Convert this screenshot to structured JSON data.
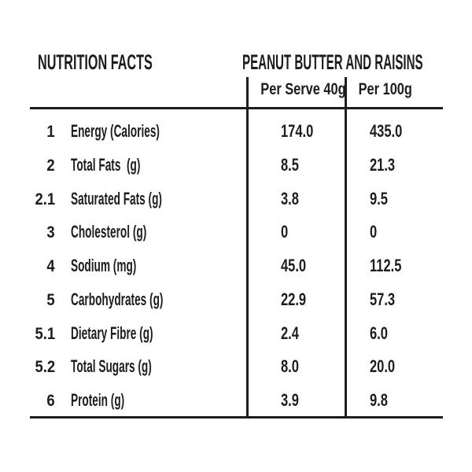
{
  "header": {
    "left_title": "NUTRITION FACTS",
    "right_title": "PEANUT BUTTER AND RAISINS"
  },
  "columns": {
    "per_serve": "Per Serve 40g",
    "per_100g": "Per 100g"
  },
  "rows": [
    {
      "num": "1",
      "label": "Energy (Calories)",
      "per_serve": "174.0",
      "per_100g": "435.0"
    },
    {
      "num": "2",
      "label": "Total Fats  (g)",
      "per_serve": "8.5",
      "per_100g": "21.3"
    },
    {
      "num": "2.1",
      "label": "Saturated Fats (g)",
      "per_serve": "3.8",
      "per_100g": "9.5"
    },
    {
      "num": "3",
      "label": "Cholesterol (g)",
      "per_serve": "0",
      "per_100g": "0"
    },
    {
      "num": "4",
      "label": "Sodium (mg)",
      "per_serve": "45.0",
      "per_100g": "112.5"
    },
    {
      "num": "5",
      "label": "Carbohydrates (g)",
      "per_serve": "22.9",
      "per_100g": "57.3"
    },
    {
      "num": "5.1",
      "label": "Dietary Fibre (g)",
      "per_serve": "2.4",
      "per_100g": "6.0"
    },
    {
      "num": "5.2",
      "label": "Total Sugars (g)",
      "per_serve": "8.0",
      "per_100g": "20.0"
    },
    {
      "num": "6",
      "label": "Protein (g)",
      "per_serve": "3.9",
      "per_100g": "9.8"
    }
  ],
  "colors": {
    "ink": "#1d1d1b",
    "background": "#ffffff"
  }
}
